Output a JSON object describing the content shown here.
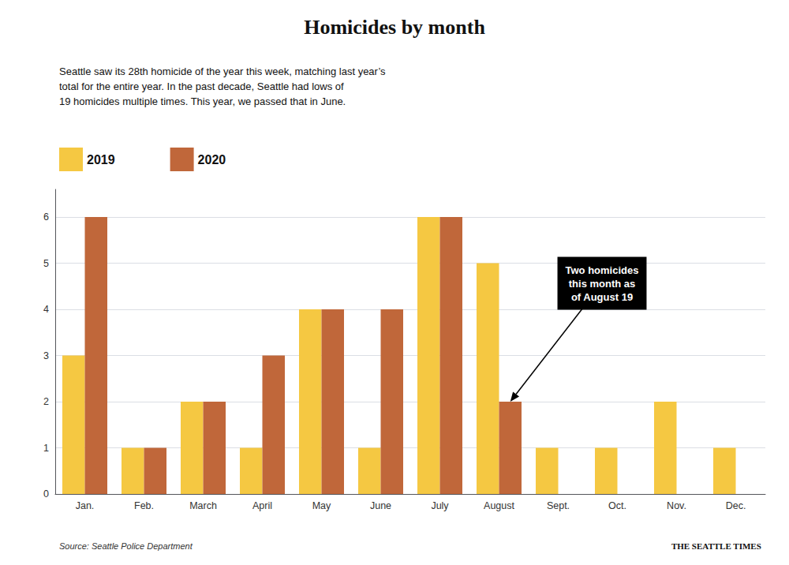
{
  "chart_data": {
    "type": "bar",
    "title": "Homicides by month",
    "subtitle": "Seattle saw its 28th homicide of the year this week, matching last year’s\ntotal for the entire year. In the past decade, Seattle had lows of\n19 homicides multiple times. This year, we passed that in June.",
    "categories": [
      "Jan.",
      "Feb.",
      "March",
      "April",
      "May",
      "June",
      "July",
      "August",
      "Sept.",
      "Oct.",
      "Nov.",
      "Dec."
    ],
    "series": [
      {
        "name": "2019",
        "color": "#F5C842",
        "values": [
          3,
          1,
          2,
          1,
          4,
          1,
          6,
          5,
          1,
          1,
          2,
          1
        ]
      },
      {
        "name": "2020",
        "color": "#C0673A",
        "values": [
          6,
          1,
          2,
          3,
          4,
          4,
          6,
          2,
          0,
          0,
          0,
          0
        ]
      }
    ],
    "ylim": [
      0,
      6.6
    ],
    "yticks": [
      0,
      1,
      2,
      3,
      4,
      5,
      6
    ],
    "grid": true,
    "legend": "upper left",
    "annotations": [
      {
        "text": "Two homicides\nthis month as\nof August 19",
        "category": "August",
        "series": "2020",
        "value": 2
      }
    ],
    "source": "Source: Seattle Police Department",
    "credit": "THE SEATTLE TIMES"
  }
}
